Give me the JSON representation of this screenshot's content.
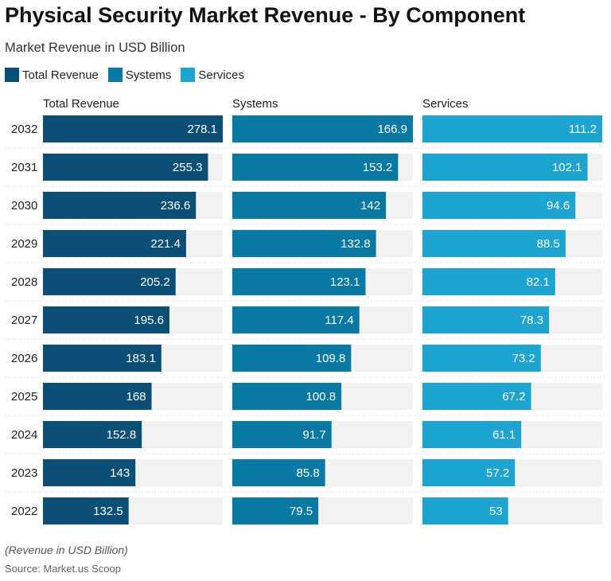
{
  "title": "Physical Security Market Revenue - By Component",
  "subtitle": "Market Revenue in USD Billion",
  "footnote": "(Revenue in USD Billion)",
  "source": "Source: Market.us Scoop",
  "chart_data": {
    "type": "bar",
    "orientation": "horizontal",
    "layout": "small-multiples",
    "categories": [
      "2032",
      "2031",
      "2030",
      "2029",
      "2028",
      "2027",
      "2026",
      "2025",
      "2024",
      "2023",
      "2022"
    ],
    "series": [
      {
        "name": "Total Revenue",
        "color": "#0b4f76",
        "max": 278.1,
        "values": [
          278.1,
          255.3,
          236.6,
          221.4,
          205.2,
          195.6,
          183.1,
          168,
          152.8,
          143,
          132.5
        ]
      },
      {
        "name": "Systems",
        "color": "#0979a3",
        "max": 166.9,
        "values": [
          166.9,
          153.2,
          142,
          132.8,
          123.1,
          117.4,
          109.8,
          100.8,
          91.7,
          85.8,
          79.5
        ]
      },
      {
        "name": "Services",
        "color": "#1ea4d0",
        "max": 111.2,
        "values": [
          111.2,
          102.1,
          94.6,
          88.5,
          82.1,
          78.3,
          73.2,
          67.2,
          61.1,
          57.2,
          53
        ]
      }
    ],
    "legend_position": "top-left",
    "track_color": "#f2f2f2",
    "grid": false
  }
}
